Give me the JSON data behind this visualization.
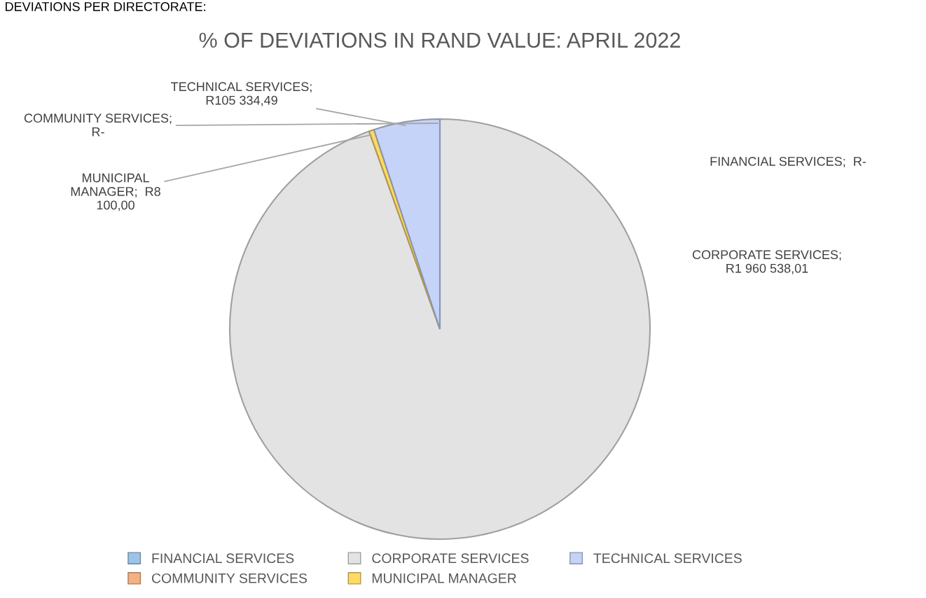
{
  "chart_data": {
    "type": "pie",
    "title": "% OF DEVIATIONS IN RAND VALUE: APRIL 2022",
    "annotations": [
      "DEVIATIONS PER DIRECTORATE:"
    ],
    "categories": [
      "FINANCIAL SERVICES",
      "COMMUNITY SERVICES",
      "CORPORATE SERVICES",
      "MUNICIPAL MANAGER",
      "TECHNICAL SERVICES"
    ],
    "values": [
      0,
      0,
      1960538.01,
      8100.0,
      105334.49
    ],
    "value_labels": [
      "FINANCIAL SERVICES;  R-",
      "COMMUNITY SERVICES;\nR-",
      "CORPORATE SERVICES;\nR1 960 538,01",
      "MUNICIPAL\nMANAGER;  R8\n100,00",
      "TECHNICAL SERVICES;\nR105 334,49"
    ],
    "colors": [
      "#9dc3e6",
      "#f4b183",
      "#e3e3e3",
      "#ffd966",
      "#c5d3f8"
    ],
    "legend": "bottom"
  }
}
